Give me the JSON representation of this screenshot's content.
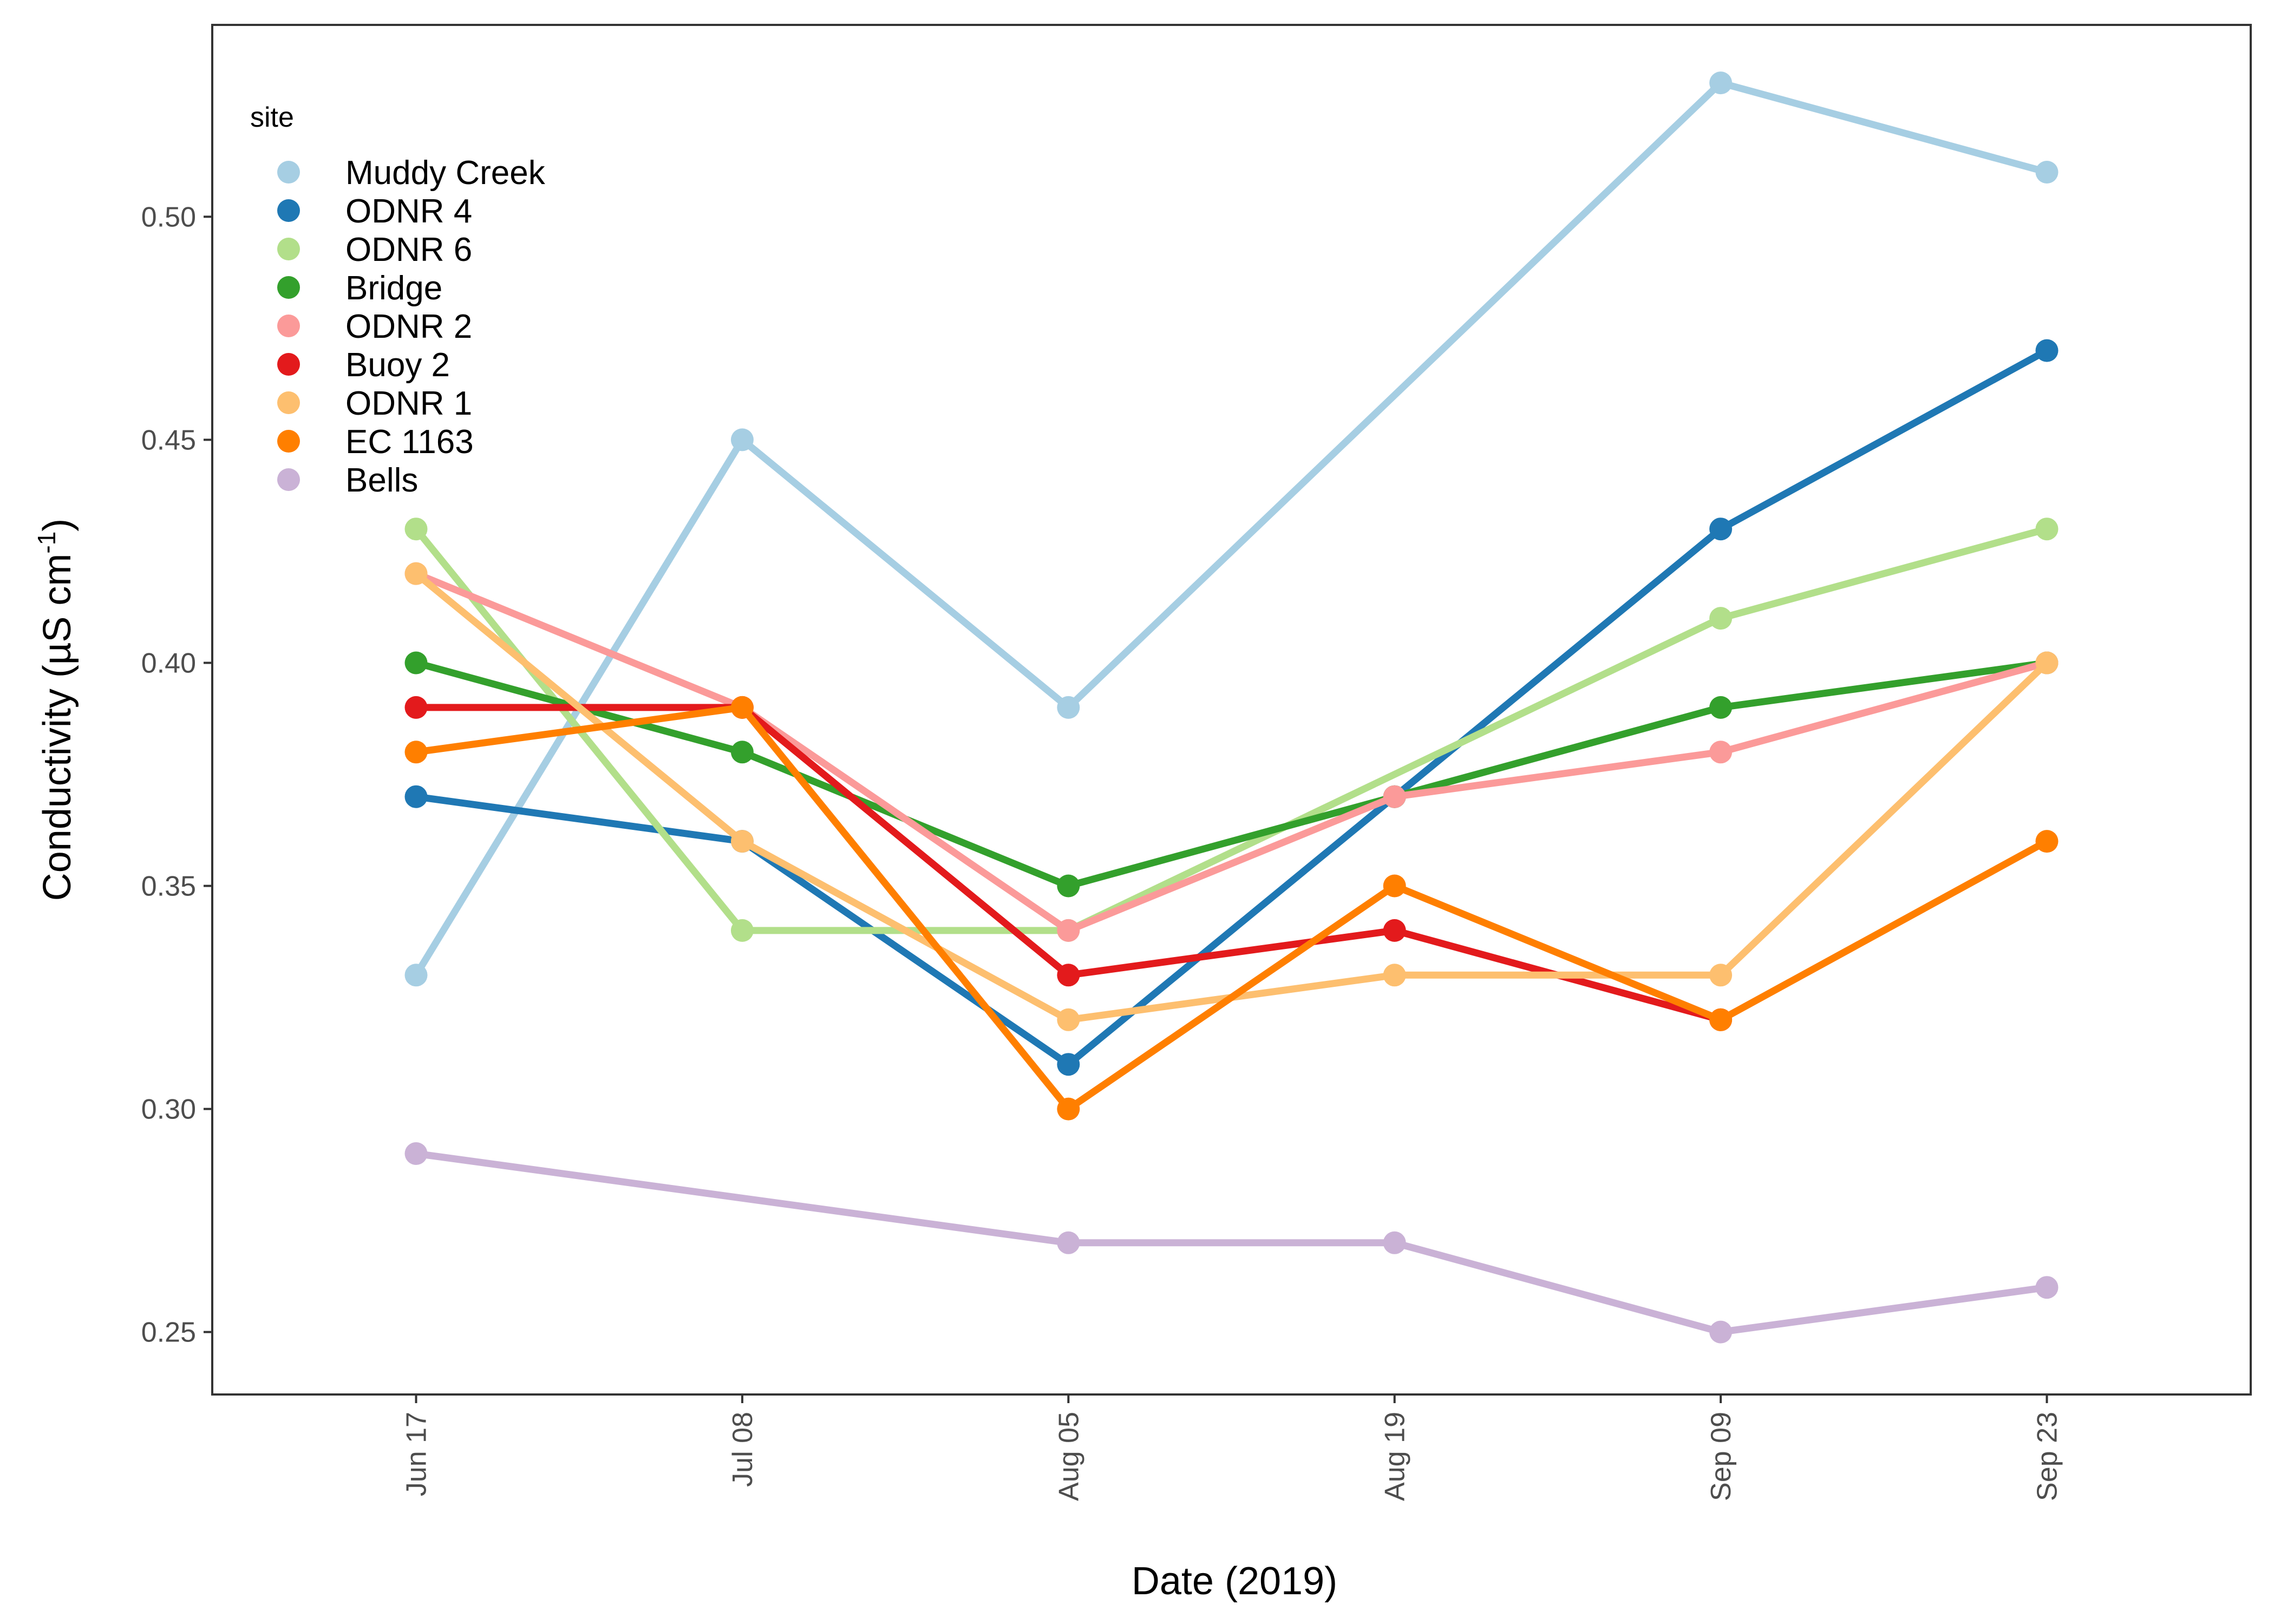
{
  "chart_data": {
    "type": "line",
    "xlabel": "Date (2019)",
    "ylabel": {
      "main": "Conductivity (µS cm",
      "sup": "-1",
      "close": ")"
    },
    "x": [
      "Jun 17",
      "Jul 08",
      "Aug 05",
      "Aug 19",
      "Sep 09",
      "Sep 23"
    ],
    "ylim": [
      0.236,
      0.543
    ],
    "yticks": [
      "0.25",
      "0.30",
      "0.35",
      "0.40",
      "0.45",
      "0.50"
    ],
    "grid": false,
    "legend": {
      "title": "site",
      "position": "top-left"
    },
    "series": [
      {
        "name": "Muddy Creek",
        "color": "#a6cee3",
        "values": [
          0.33,
          0.45,
          0.39,
          null,
          0.53,
          0.51
        ]
      },
      {
        "name": "ODNR 4",
        "color": "#1f78b4",
        "values": [
          0.37,
          0.36,
          0.31,
          0.37,
          0.43,
          0.47
        ]
      },
      {
        "name": "ODNR 6",
        "color": "#b2df8a",
        "values": [
          0.43,
          0.34,
          0.34,
          null,
          0.41,
          0.43
        ]
      },
      {
        "name": "Bridge",
        "color": "#33a02c",
        "values": [
          0.4,
          0.38,
          0.35,
          0.37,
          0.39,
          0.4
        ]
      },
      {
        "name": "ODNR 2",
        "color": "#fb9a99",
        "values": [
          0.42,
          0.39,
          0.34,
          0.37,
          0.38,
          0.4
        ]
      },
      {
        "name": "Buoy 2",
        "color": "#e31a1c",
        "values": [
          0.39,
          0.39,
          0.33,
          0.34,
          0.32,
          null
        ]
      },
      {
        "name": "ODNR 1",
        "color": "#fdbf6f",
        "values": [
          0.42,
          0.36,
          0.32,
          0.33,
          0.33,
          0.4
        ]
      },
      {
        "name": "EC 1163",
        "color": "#ff7f00",
        "values": [
          0.38,
          0.39,
          0.3,
          0.35,
          0.32,
          0.36
        ]
      },
      {
        "name": "Bells",
        "color": "#cab2d6",
        "values": [
          0.29,
          null,
          0.27,
          0.27,
          0.25,
          0.26
        ]
      }
    ]
  }
}
